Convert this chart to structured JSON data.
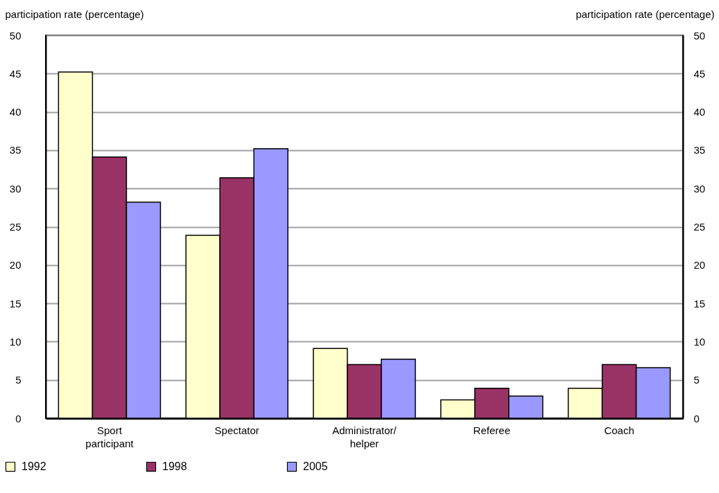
{
  "chart_data": {
    "type": "bar",
    "categories": [
      "Sport participant",
      "Spectator",
      "Administrator/helper",
      "Referee",
      "Coach"
    ],
    "series": [
      {
        "name": "1992",
        "color": "#ffffcc",
        "values": [
          45.2,
          23.9,
          9.1,
          2.4,
          3.9
        ]
      },
      {
        "name": "1998",
        "color": "#993366",
        "values": [
          34.1,
          31.4,
          7.0,
          3.9,
          7.0
        ]
      },
      {
        "name": "2005",
        "color": "#9999ff",
        "values": [
          28.2,
          35.2,
          7.7,
          2.9,
          6.6
        ]
      }
    ],
    "ylabel": "participation rate (percentage)",
    "y2label": "participation rate (percentage)",
    "ylim": [
      0,
      50
    ],
    "yticks": [
      0,
      5,
      10,
      15,
      20,
      25,
      30,
      35,
      40,
      45,
      50
    ],
    "y2lim": [
      0,
      50
    ],
    "y2ticks": [
      0,
      5,
      10,
      15,
      20,
      25,
      30,
      35,
      40,
      45,
      50
    ],
    "grid": "y",
    "legend": "bottom left"
  }
}
